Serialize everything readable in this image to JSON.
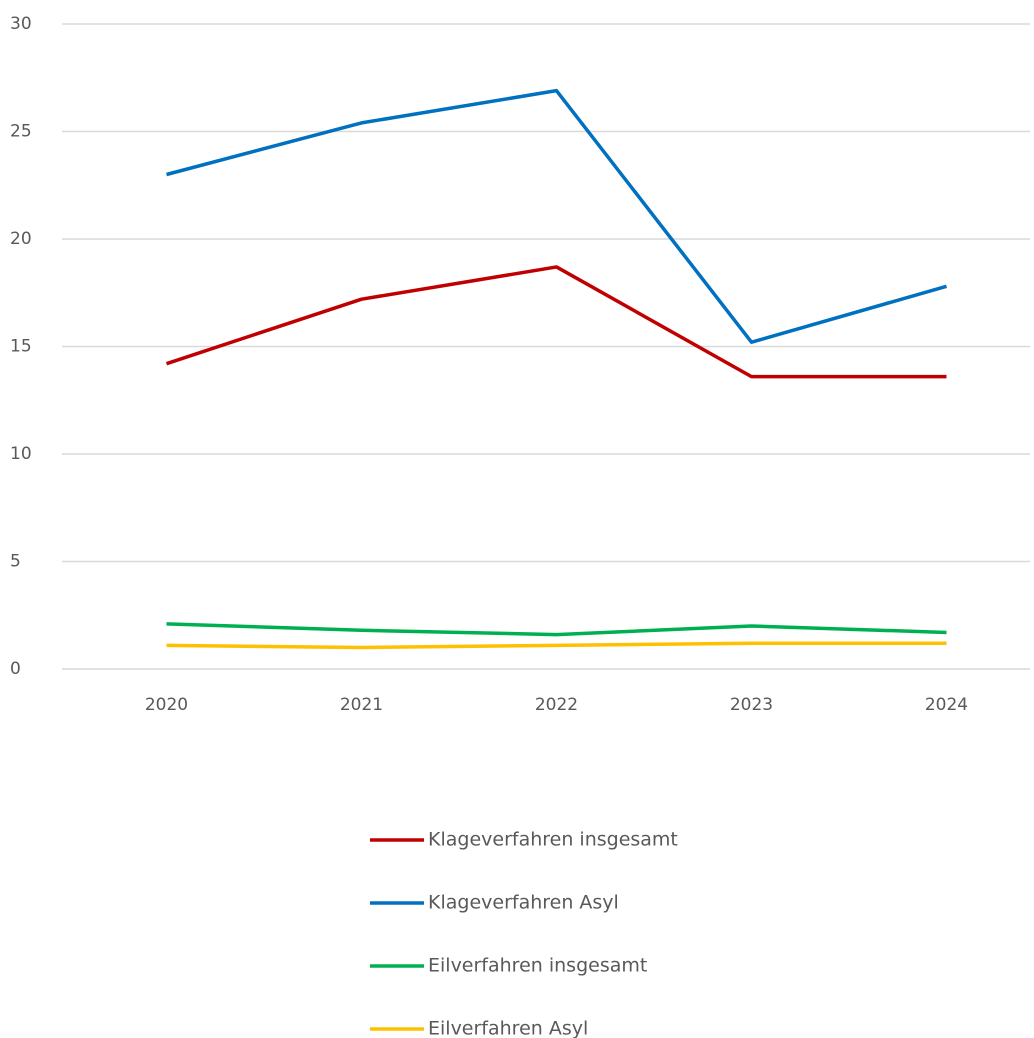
{
  "chart_data": {
    "type": "line",
    "categories": [
      "2020",
      "2021",
      "2022",
      "2023",
      "2024"
    ],
    "series": [
      {
        "name": "Klageverfahren insgesamt",
        "color": "#c00000",
        "values": [
          14.2,
          17.2,
          18.7,
          13.6,
          13.6
        ]
      },
      {
        "name": "Klageverfahren Asyl",
        "color": "#0070c0",
        "values": [
          23.0,
          25.4,
          26.9,
          15.2,
          17.8
        ]
      },
      {
        "name": "Eilverfahren insgesamt",
        "color": "#00b050",
        "values": [
          2.1,
          1.8,
          1.6,
          2.0,
          1.7
        ]
      },
      {
        "name": "Eilverfahren Asyl",
        "color": "#ffc000",
        "values": [
          1.1,
          1.0,
          1.1,
          1.2,
          1.2
        ]
      }
    ],
    "ylim": [
      0,
      30
    ],
    "yticks": [
      0,
      5,
      10,
      15,
      20,
      25,
      30
    ],
    "grid": true,
    "legend": "bottom"
  }
}
